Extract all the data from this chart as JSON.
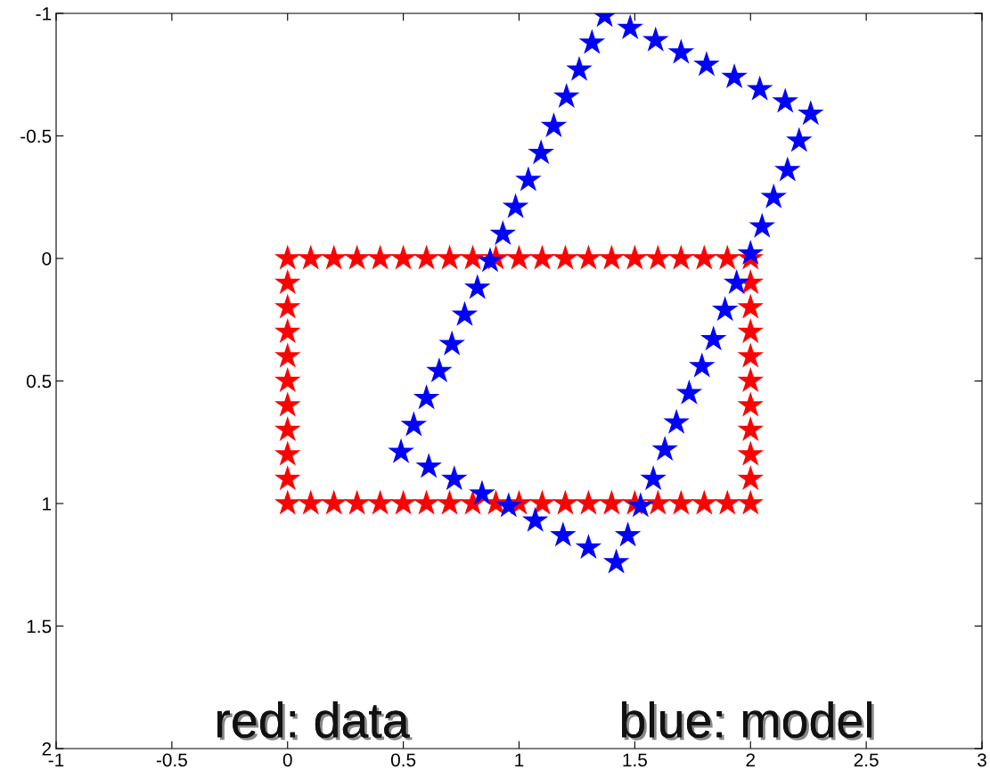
{
  "chart_data": {
    "type": "scatter",
    "series": [
      {
        "x": [
          0,
          0.1,
          0.2,
          0.3,
          0.4,
          0.5,
          0.6,
          0.7,
          0.8,
          0.9,
          1,
          1.1,
          1.2,
          1.3,
          1.4,
          1.5,
          1.6,
          1.7,
          1.8,
          1.9,
          2,
          2,
          2,
          2,
          2,
          2,
          2,
          2,
          2,
          2,
          2,
          1.9,
          1.8,
          1.7,
          1.6,
          1.5,
          1.4,
          1.3,
          1.2,
          1.1,
          1,
          0.9,
          0.8,
          0.7,
          0.6,
          0.5,
          0.4,
          0.3,
          0.2,
          0.1,
          0,
          0,
          0,
          0,
          0,
          0,
          0,
          0,
          0,
          0
        ],
        "values": [
          0,
          0,
          0,
          0,
          0,
          0,
          0,
          0,
          0,
          0,
          0,
          0,
          0,
          0,
          0,
          0,
          0,
          0,
          0,
          0,
          0,
          0.1,
          0.2,
          0.3,
          0.4,
          0.5,
          0.6,
          0.7,
          0.8,
          0.9,
          1,
          1,
          1,
          1,
          1,
          1,
          1,
          1,
          1,
          1,
          1,
          1,
          1,
          1,
          1,
          1,
          1,
          1,
          1,
          1,
          1,
          0.9,
          0.8,
          0.7,
          0.6,
          0.5,
          0.4,
          0.3,
          0.2,
          0.1
        ],
        "color": "#ff0000"
      },
      {
        "x": [
          1.37,
          1.48,
          1.59,
          1.7,
          1.81,
          1.93,
          2.04,
          2.15,
          2.26,
          2.21,
          2.16,
          2.1,
          2.05,
          2,
          1.94,
          1.89,
          1.84,
          1.79,
          1.735,
          1.68,
          1.63,
          1.58,
          1.525,
          1.47,
          1.42,
          1.3,
          1.19,
          1.07,
          0.955,
          0.84,
          0.72,
          0.61,
          0.49,
          0.545,
          0.6,
          0.655,
          0.71,
          0.765,
          0.82,
          0.875,
          0.93,
          0.985,
          1.04,
          1.095,
          1.15,
          1.205,
          1.26,
          1.315
        ],
        "values": [
          -0.99,
          -0.94,
          -0.89,
          -0.84,
          -0.79,
          -0.74,
          -0.69,
          -0.64,
          -0.59,
          -0.48,
          -0.36,
          -0.25,
          -0.13,
          -0.02,
          0.1,
          0.21,
          0.33,
          0.44,
          0.55,
          0.67,
          0.78,
          0.9,
          1.01,
          1.13,
          1.24,
          1.18,
          1.13,
          1.07,
          1.01,
          0.96,
          0.9,
          0.85,
          0.79,
          0.68,
          0.57,
          0.46,
          0.35,
          0.23,
          0.12,
          0.01,
          -0.1,
          -0.21,
          -0.32,
          -0.43,
          -0.54,
          -0.66,
          -0.77,
          -0.88
        ],
        "color": "#0000ff"
      }
    ],
    "xlim": [
      -1,
      3
    ],
    "xticks": [
      -1,
      -0.5,
      0,
      0.5,
      1,
      1.5,
      2,
      2.5,
      3
    ],
    "ylim": [
      2,
      -1
    ],
    "yticks": [
      -1,
      -0.5,
      0,
      0.5,
      1,
      1.5,
      2
    ],
    "grid": false,
    "marker": "star",
    "annotations": [
      "red: data",
      "blue: model"
    ]
  }
}
